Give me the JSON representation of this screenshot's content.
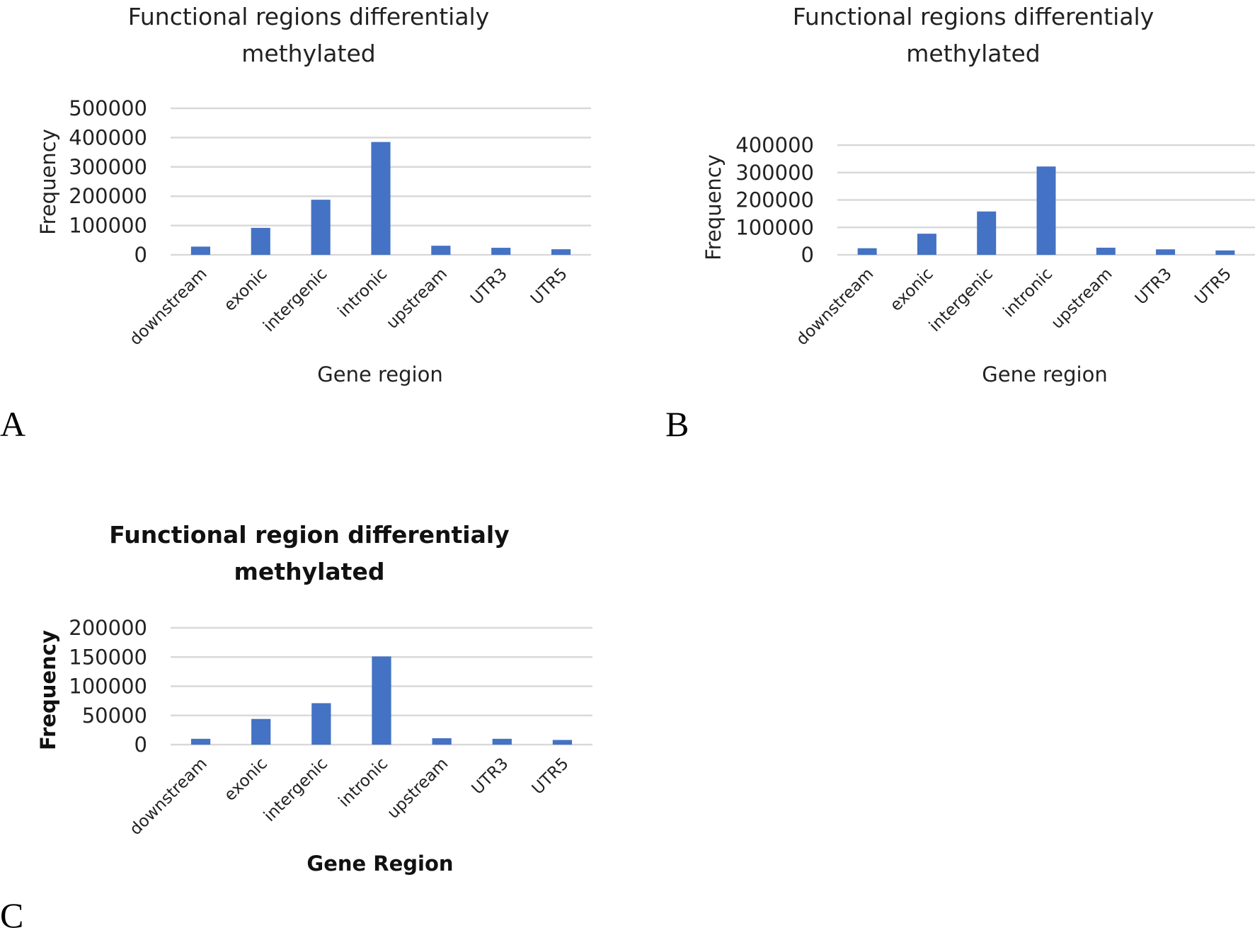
{
  "chart_data": [
    {
      "panel": "A",
      "type": "bar",
      "title_lines": [
        "Functional regions differentialy",
        "methylated"
      ],
      "xlabel": "Gene region",
      "ylabel": "Frequency",
      "categories": [
        "downstream",
        "exonic",
        "intergenic",
        "intronic",
        "upstream",
        "UTR3",
        "UTR5"
      ],
      "values": [
        28000,
        92000,
        188000,
        385000,
        31000,
        24000,
        19000
      ],
      "ylim": [
        0,
        500000
      ],
      "yticks": [
        "0",
        "100000",
        "200000",
        "300000",
        "400000",
        "500000"
      ],
      "grid": true,
      "bar_color": "#4472c4"
    },
    {
      "panel": "B",
      "type": "bar",
      "title_lines": [
        "Functional regions differentialy",
        "methylated"
      ],
      "xlabel": "Gene region",
      "ylabel": "Frequency",
      "categories": [
        "downstream",
        "exonic",
        "intergenic",
        "intronic",
        "upstream",
        "UTR3",
        "UTR5"
      ],
      "values": [
        24000,
        77000,
        158000,
        322000,
        26000,
        20000,
        16000
      ],
      "ylim": [
        0,
        400000
      ],
      "yticks": [
        "0",
        "100000",
        "200000",
        "300000",
        "400000"
      ],
      "grid": true,
      "bar_color": "#4472c4"
    },
    {
      "panel": "C",
      "type": "bar",
      "title_lines": [
        "Functional region differentialy",
        "methylated"
      ],
      "xlabel": "Gene Region",
      "ylabel": "Frequency",
      "categories": [
        "downstream",
        "exonic",
        "intergenic",
        "intronic",
        "upstream",
        "UTR3",
        "UTR5"
      ],
      "values": [
        10000,
        44000,
        71000,
        151000,
        11000,
        10000,
        8000
      ],
      "ylim": [
        0,
        200000
      ],
      "yticks": [
        "0",
        "50000",
        "100000",
        "150000",
        "200000"
      ],
      "grid": true,
      "bar_color": "#4472c4",
      "bold_titles": true
    }
  ]
}
